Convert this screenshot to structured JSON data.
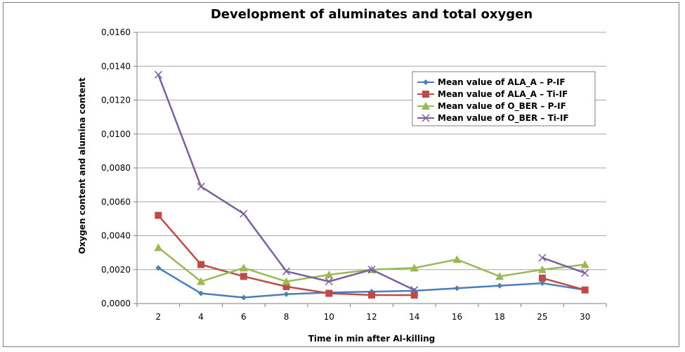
{
  "chart_data": {
    "type": "line",
    "title": "Development of aluminates and total oxygen",
    "xlabel": "Time in min after Al-killing",
    "ylabel": "Oxygen content and alumina content",
    "categories": [
      "2",
      "4",
      "6",
      "8",
      "10",
      "12",
      "14",
      "16",
      "18",
      "25",
      "30"
    ],
    "ylim": [
      0,
      0.016
    ],
    "yticks": [
      0.0,
      0.002,
      0.004,
      0.006,
      0.008,
      0.01,
      0.012,
      0.014,
      0.016
    ],
    "ytick_labels": [
      "0,0000",
      "0,0020",
      "0,0040",
      "0,0060",
      "0,0080",
      "0,0100",
      "0,0120",
      "0,0140",
      "0,0160"
    ],
    "grid": true,
    "legend_position": "top-right",
    "series": [
      {
        "name": "Mean value of ALA_A – P-IF",
        "color": "#4a7ebb",
        "marker": "diamond",
        "values": [
          0.0021,
          0.0006,
          0.00035,
          0.00055,
          0.00065,
          0.0007,
          0.00075,
          0.0009,
          0.00105,
          0.0012,
          0.0008
        ]
      },
      {
        "name": "Mean value of ALA_A – Ti-IF",
        "color": "#be4b48",
        "marker": "square",
        "values": [
          0.0052,
          0.0023,
          0.0016,
          0.001,
          0.0006,
          0.0005,
          0.0005,
          null,
          null,
          0.0015,
          0.0008
        ]
      },
      {
        "name": "Mean value of O_BER – P-IF",
        "color": "#98b954",
        "marker": "triangle",
        "values": [
          0.0033,
          0.0013,
          0.0021,
          0.0013,
          0.0017,
          0.002,
          0.0021,
          0.0026,
          0.0016,
          0.002,
          0.0023
        ]
      },
      {
        "name": "Mean value of O_BER – Ti-IF",
        "color": "#7d5fa0",
        "marker": "x",
        "values": [
          0.0135,
          0.0069,
          0.0053,
          0.0019,
          0.0013,
          0.002,
          0.0008,
          null,
          null,
          0.0027,
          0.0018
        ]
      }
    ]
  }
}
